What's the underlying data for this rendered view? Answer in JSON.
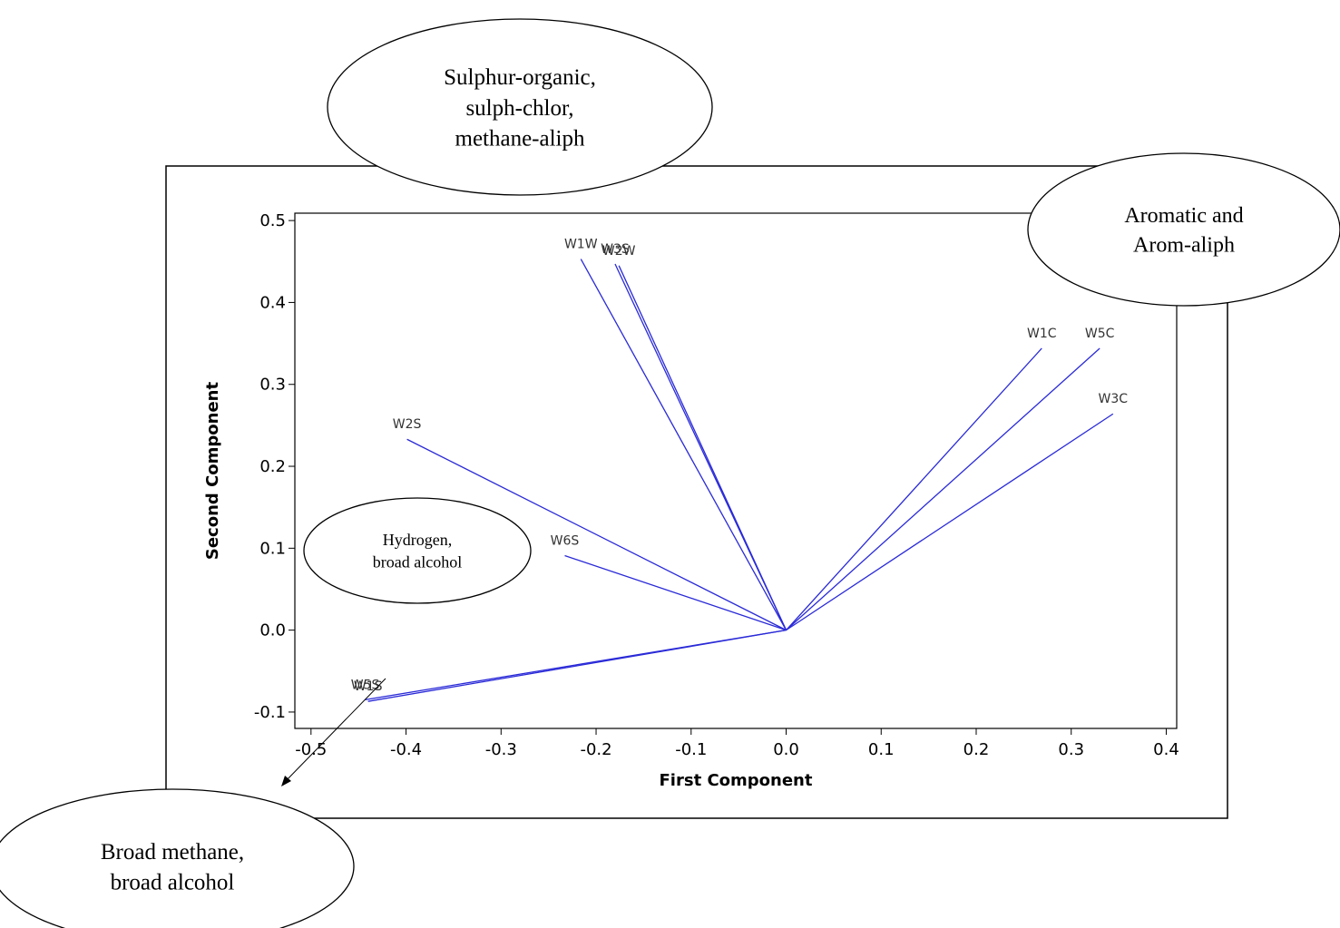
{
  "chart_data": {
    "type": "loading",
    "x_label": "First Component",
    "y_label": "Second Component",
    "color": "#2a2ad8",
    "xlim": [
      -0.517,
      0.411
    ],
    "ylim": [
      -0.12,
      0.509
    ],
    "xticks": [
      -0.5,
      -0.4,
      -0.3,
      -0.2,
      -0.1,
      {
        "value": 0,
        "label": "0.0"
      },
      0.1,
      0.2,
      0.3,
      0.4
    ],
    "yticks": [
      0.5,
      0.4,
      0.3,
      0.2,
      0.1,
      {
        "value": 0,
        "label": "0.0"
      },
      -0.1
    ],
    "points": [
      {
        "name": "W1W",
        "x": -0.216,
        "y": 0.453
      },
      {
        "name": "W3S",
        "x": -0.18,
        "y": 0.447
      },
      {
        "name": "W2W",
        "x": -0.176,
        "y": 0.445
      },
      {
        "name": "W1C",
        "x": 0.269,
        "y": 0.344
      },
      {
        "name": "W5C",
        "x": 0.33,
        "y": 0.344
      },
      {
        "name": "W3C",
        "x": 0.344,
        "y": 0.264
      },
      {
        "name": "W2S",
        "x": -0.399,
        "y": 0.233
      },
      {
        "name": "W6S",
        "x": -0.233,
        "y": 0.091
      },
      {
        "name": "W1S",
        "x": -0.44,
        "y": -0.087
      },
      {
        "name": "W5S",
        "x": -0.443,
        "y": -0.085
      }
    ],
    "annotations": [
      {
        "lines": [
          "Sulphur-organic,",
          "sulph-chlor,",
          "methane-aliph"
        ]
      },
      {
        "lines": [
          "Aromatic and",
          "Arom-aliph"
        ]
      },
      {
        "lines": [
          "Hydrogen,",
          "broad alcohol"
        ]
      },
      {
        "lines": [
          "Broad methane,",
          "broad alcohol"
        ]
      }
    ]
  }
}
